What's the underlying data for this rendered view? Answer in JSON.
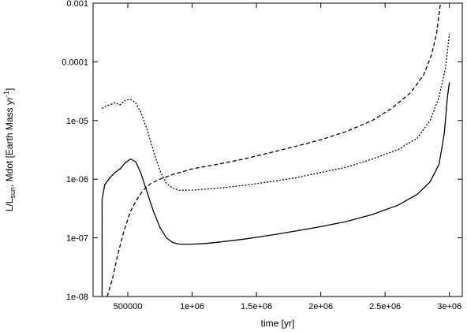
{
  "chart_data": {
    "type": "line",
    "xlabel": "time [yr]",
    "ylabel_parts": {
      "a": "L/L",
      "a_sub": "sun",
      "b": ", Mdot [Earth Mass yr",
      "b_sup": "-1",
      "c": "]"
    },
    "x_scale": "linear",
    "y_scale": "log",
    "xlim": [
      230000,
      3100000
    ],
    "ylim": [
      1e-08,
      0.001
    ],
    "x_ticks": [
      {
        "value": 500000,
        "label": "500000"
      },
      {
        "value": 1000000,
        "label": "1e+06"
      },
      {
        "value": 1500000,
        "label": "1.5e+06"
      },
      {
        "value": 2000000,
        "label": "2e+06"
      },
      {
        "value": 2500000,
        "label": "2.5e+06"
      },
      {
        "value": 3000000,
        "label": "3e+06"
      }
    ],
    "y_ticks": [
      {
        "value": 1e-08,
        "label": "1e-08"
      },
      {
        "value": 1e-07,
        "label": "1e-07"
      },
      {
        "value": 1e-06,
        "label": "1e-06"
      },
      {
        "value": 1e-05,
        "label": "1e-05"
      },
      {
        "value": 0.0001,
        "label": "0.0001"
      },
      {
        "value": 0.001,
        "label": "0.001"
      }
    ],
    "grid": false,
    "legend": "none",
    "series": [
      {
        "style": "solid",
        "points": [
          [
            300000,
            1e-08
          ],
          [
            300000,
            4.5e-07
          ],
          [
            320000,
            8e-07
          ],
          [
            360000,
            1.05e-06
          ],
          [
            400000,
            1.3e-06
          ],
          [
            440000,
            1.5e-06
          ],
          [
            480000,
            1.9e-06
          ],
          [
            520000,
            2.2e-06
          ],
          [
            560000,
            2e-06
          ],
          [
            600000,
            1.3e-06
          ],
          [
            650000,
            6e-07
          ],
          [
            700000,
            2.8e-07
          ],
          [
            750000,
            1.5e-07
          ],
          [
            800000,
            1e-07
          ],
          [
            850000,
            8.3e-08
          ],
          [
            900000,
            7.8e-08
          ],
          [
            1000000,
            7.8e-08
          ],
          [
            1100000,
            8e-08
          ],
          [
            1200000,
            8.4e-08
          ],
          [
            1400000,
            9.5e-08
          ],
          [
            1600000,
            1.1e-07
          ],
          [
            1800000,
            1.3e-07
          ],
          [
            2000000,
            1.55e-07
          ],
          [
            2200000,
            1.9e-07
          ],
          [
            2400000,
            2.5e-07
          ],
          [
            2600000,
            3.6e-07
          ],
          [
            2750000,
            5.5e-07
          ],
          [
            2850000,
            9e-07
          ],
          [
            2920000,
            1.8e-06
          ],
          [
            2960000,
            6e-06
          ],
          [
            2985000,
            2.5e-05
          ],
          [
            3000000,
            4.5e-05
          ]
        ]
      },
      {
        "style": "dashed",
        "points": [
          [
            340000,
            1e-08
          ],
          [
            380000,
            2e-08
          ],
          [
            420000,
            5e-08
          ],
          [
            470000,
            1.3e-07
          ],
          [
            520000,
            2.8e-07
          ],
          [
            570000,
            4.5e-07
          ],
          [
            620000,
            6.5e-07
          ],
          [
            680000,
            8.5e-07
          ],
          [
            750000,
            1e-06
          ],
          [
            850000,
            1.2e-06
          ],
          [
            1000000,
            1.5e-06
          ],
          [
            1200000,
            1.8e-06
          ],
          [
            1400000,
            2.2e-06
          ],
          [
            1600000,
            2.8e-06
          ],
          [
            1800000,
            3.6e-06
          ],
          [
            2000000,
            4.7e-06
          ],
          [
            2200000,
            6.5e-06
          ],
          [
            2400000,
            1e-05
          ],
          [
            2550000,
            1.6e-05
          ],
          [
            2700000,
            3e-05
          ],
          [
            2800000,
            6e-05
          ],
          [
            2860000,
            0.00013
          ],
          [
            2900000,
            0.0003
          ],
          [
            2930000,
            0.001
          ]
        ]
      },
      {
        "style": "dotted",
        "points": [
          [
            300000,
            1.6e-05
          ],
          [
            330000,
            1.75e-05
          ],
          [
            360000,
            1.85e-05
          ],
          [
            400000,
            2e-05
          ],
          [
            440000,
            1.85e-05
          ],
          [
            480000,
            2.2e-05
          ],
          [
            520000,
            2.3e-05
          ],
          [
            560000,
            2e-05
          ],
          [
            600000,
            1.4e-05
          ],
          [
            650000,
            7e-06
          ],
          [
            700000,
            3e-06
          ],
          [
            750000,
            1.4e-06
          ],
          [
            800000,
            8.5e-07
          ],
          [
            850000,
            7e-07
          ],
          [
            900000,
            6.5e-07
          ],
          [
            1000000,
            6.5e-07
          ],
          [
            1200000,
            7e-07
          ],
          [
            1400000,
            7.8e-07
          ],
          [
            1600000,
            9e-07
          ],
          [
            1800000,
            1.05e-06
          ],
          [
            2000000,
            1.3e-06
          ],
          [
            2200000,
            1.6e-06
          ],
          [
            2400000,
            2.2e-06
          ],
          [
            2600000,
            3.2e-06
          ],
          [
            2750000,
            5e-06
          ],
          [
            2850000,
            1e-05
          ],
          [
            2920000,
            2.5e-05
          ],
          [
            2970000,
            8e-05
          ],
          [
            3000000,
            0.0003
          ]
        ]
      }
    ]
  }
}
